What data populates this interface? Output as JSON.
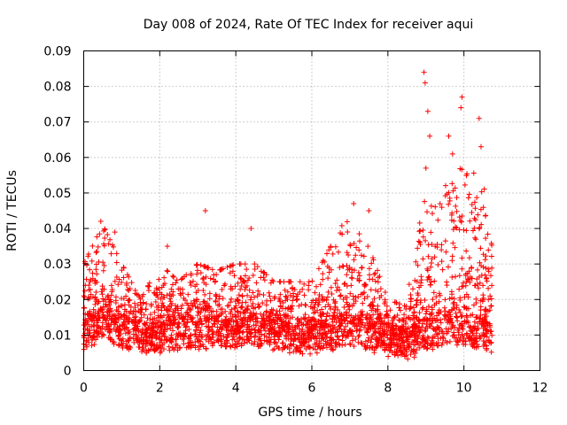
{
  "chart_data": {
    "type": "scatter",
    "title": "Day 008 of 2024, Rate Of TEC Index for receiver aqui",
    "xlabel": "GPS time / hours",
    "ylabel": "ROTI / TECUs",
    "xlim": [
      0,
      12
    ],
    "ylim": [
      0,
      0.09
    ],
    "x_ticks": [
      0,
      2,
      4,
      6,
      8,
      10,
      12
    ],
    "x_tick_labels": [
      "0",
      "2",
      "4",
      "6",
      "8",
      "10",
      "12"
    ],
    "y_ticks": [
      0,
      0.01,
      0.02,
      0.03,
      0.04,
      0.05,
      0.06,
      0.07,
      0.08,
      0.09
    ],
    "y_tick_labels": [
      "0",
      "0.01",
      "0.02",
      "0.03",
      "0.04",
      "0.05",
      "0.06",
      "0.07",
      "0.08",
      "0.09"
    ],
    "grid": true,
    "marker": "+",
    "series_color": "#ff0000",
    "data_extent_x": [
      0,
      10.75
    ],
    "envelope": [
      {
        "x": 0.0,
        "base": 0.01,
        "spread": 0.009,
        "cap": 0.03
      },
      {
        "x": 0.5,
        "base": 0.013,
        "spread": 0.014,
        "cap": 0.041
      },
      {
        "x": 1.0,
        "base": 0.01,
        "spread": 0.008,
        "cap": 0.03
      },
      {
        "x": 1.5,
        "base": 0.009,
        "spread": 0.006,
        "cap": 0.02
      },
      {
        "x": 2.0,
        "base": 0.009,
        "spread": 0.007,
        "cap": 0.03
      },
      {
        "x": 2.5,
        "base": 0.01,
        "spread": 0.008,
        "cap": 0.025
      },
      {
        "x": 3.0,
        "base": 0.01,
        "spread": 0.009,
        "cap": 0.03
      },
      {
        "x": 3.5,
        "base": 0.011,
        "spread": 0.01,
        "cap": 0.028
      },
      {
        "x": 4.0,
        "base": 0.01,
        "spread": 0.009,
        "cap": 0.03
      },
      {
        "x": 4.5,
        "base": 0.011,
        "spread": 0.01,
        "cap": 0.03
      },
      {
        "x": 5.0,
        "base": 0.01,
        "spread": 0.008,
        "cap": 0.025
      },
      {
        "x": 5.5,
        "base": 0.009,
        "spread": 0.008,
        "cap": 0.025
      },
      {
        "x": 6.0,
        "base": 0.009,
        "spread": 0.007,
        "cap": 0.025
      },
      {
        "x": 6.5,
        "base": 0.01,
        "spread": 0.012,
        "cap": 0.035
      },
      {
        "x": 7.0,
        "base": 0.011,
        "spread": 0.013,
        "cap": 0.045
      },
      {
        "x": 7.5,
        "base": 0.01,
        "spread": 0.01,
        "cap": 0.035
      },
      {
        "x": 8.0,
        "base": 0.008,
        "spread": 0.006,
        "cap": 0.02
      },
      {
        "x": 8.5,
        "base": 0.007,
        "spread": 0.005,
        "cap": 0.018
      },
      {
        "x": 9.0,
        "base": 0.01,
        "spread": 0.016,
        "cap": 0.083
      },
      {
        "x": 9.5,
        "base": 0.011,
        "spread": 0.018,
        "cap": 0.066
      },
      {
        "x": 10.0,
        "base": 0.011,
        "spread": 0.02,
        "cap": 0.077
      },
      {
        "x": 10.5,
        "base": 0.01,
        "spread": 0.017,
        "cap": 0.071
      },
      {
        "x": 10.75,
        "base": 0.009,
        "spread": 0.01,
        "cap": 0.035
      }
    ],
    "notable_points": [
      {
        "x": 0.45,
        "y": 0.042
      },
      {
        "x": 0.82,
        "y": 0.039
      },
      {
        "x": 2.2,
        "y": 0.035
      },
      {
        "x": 3.2,
        "y": 0.045
      },
      {
        "x": 4.4,
        "y": 0.04
      },
      {
        "x": 7.1,
        "y": 0.047
      },
      {
        "x": 7.5,
        "y": 0.045
      },
      {
        "x": 8.95,
        "y": 0.084
      },
      {
        "x": 8.98,
        "y": 0.081
      },
      {
        "x": 9.05,
        "y": 0.073
      },
      {
        "x": 9.1,
        "y": 0.066
      },
      {
        "x": 9.6,
        "y": 0.066
      },
      {
        "x": 9.95,
        "y": 0.077
      },
      {
        "x": 9.92,
        "y": 0.074
      },
      {
        "x": 10.4,
        "y": 0.071
      },
      {
        "x": 10.45,
        "y": 0.063
      },
      {
        "x": 9.0,
        "y": 0.057
      },
      {
        "x": 9.7,
        "y": 0.061
      }
    ]
  }
}
